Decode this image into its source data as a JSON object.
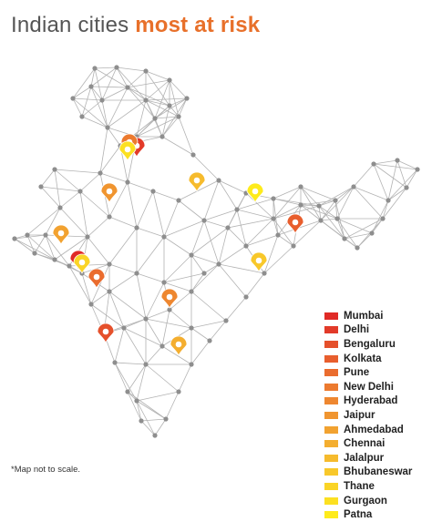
{
  "title": {
    "part1": "Indian cities",
    "part2": "most at risk"
  },
  "note": "*Map not to scale.",
  "legend": [
    {
      "label": "Mumbai",
      "color": "#e02a26"
    },
    {
      "label": "Delhi",
      "color": "#e23a29"
    },
    {
      "label": "Bengaluru",
      "color": "#e5502b"
    },
    {
      "label": "Kolkata",
      "color": "#e85e2d"
    },
    {
      "label": "Pune",
      "color": "#ea6c2e"
    },
    {
      "label": "New Delhi",
      "color": "#ec7a2f"
    },
    {
      "label": "Hyderabad",
      "color": "#ee8730"
    },
    {
      "label": "Jaipur",
      "color": "#f09530"
    },
    {
      "label": "Ahmedabad",
      "color": "#f2a230"
    },
    {
      "label": "Chennai",
      "color": "#f4ae2f"
    },
    {
      "label": "Jalalpur",
      "color": "#f6bb2d"
    },
    {
      "label": "Bhubaneswar",
      "color": "#f8c82a"
    },
    {
      "label": "Thane",
      "color": "#fad426"
    },
    {
      "label": "Gurgaon",
      "color": "#fce021"
    },
    {
      "label": "Patna",
      "color": "#feeb1c"
    }
  ],
  "colors": {
    "network_line": "#b3b3b3",
    "network_node": "#8e8e8e"
  }
}
